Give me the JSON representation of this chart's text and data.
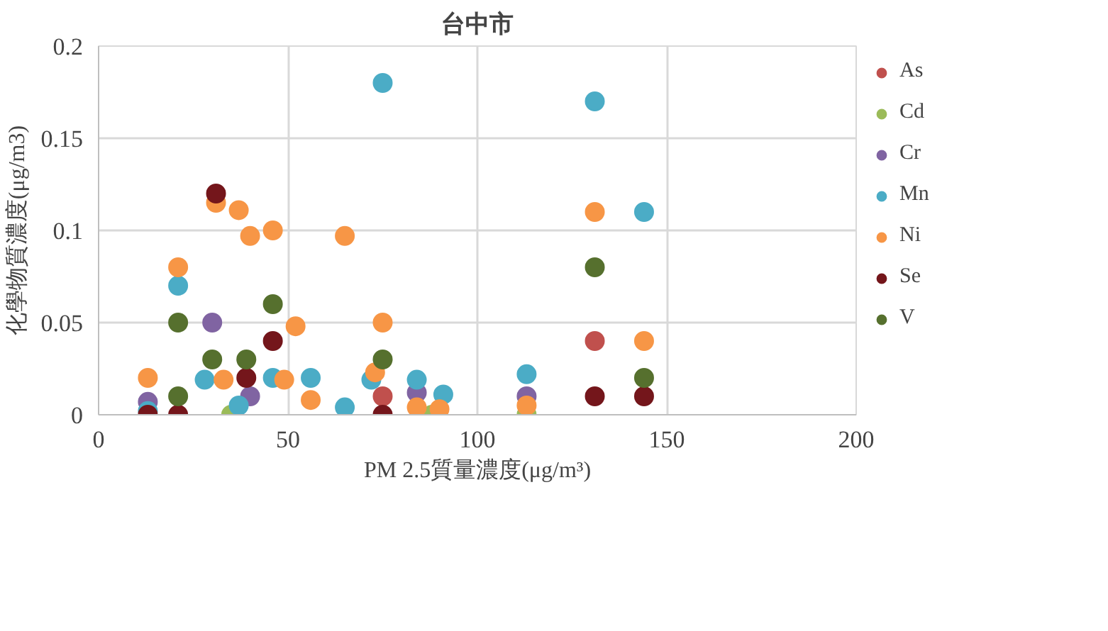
{
  "chart_data": {
    "type": "scatter",
    "title": "台中市",
    "xlabel": "PM 2.5質量濃度(μg/m³)",
    "ylabel": "化學物質濃度(μg/m3)",
    "xlim": [
      0,
      200
    ],
    "ylim": [
      0,
      0.2
    ],
    "xticks": [
      0,
      50,
      100,
      150,
      200
    ],
    "yticks": [
      0,
      0.05,
      0.1,
      0.15,
      0.2
    ],
    "grid": true,
    "legend": "right",
    "marker": "circle",
    "series": [
      {
        "name": "As",
        "color": "#c0504d",
        "x": [
          75,
          131
        ],
        "values": [
          0.01,
          0.04
        ]
      },
      {
        "name": "Cd",
        "color": "#9bbb59",
        "x": [
          35,
          88,
          113
        ],
        "values": [
          0.0,
          0.0,
          0.0
        ]
      },
      {
        "name": "Cr",
        "color": "#8064a2",
        "x": [
          13,
          30,
          40,
          84,
          113
        ],
        "values": [
          0.007,
          0.05,
          0.01,
          0.012,
          0.01
        ]
      },
      {
        "name": "Mn",
        "color": "#4bacc6",
        "x": [
          13,
          21,
          28,
          37,
          46,
          56,
          65,
          72,
          75,
          84,
          91,
          113,
          131,
          144
        ],
        "values": [
          0.002,
          0.07,
          0.019,
          0.005,
          0.02,
          0.02,
          0.004,
          0.019,
          0.18,
          0.019,
          0.011,
          0.022,
          0.17,
          0.11
        ]
      },
      {
        "name": "Ni",
        "color": "#f79646",
        "x": [
          13,
          21,
          33,
          31,
          37,
          40,
          46,
          49,
          52,
          56,
          65,
          73,
          75,
          84,
          90,
          113,
          131,
          144
        ],
        "values": [
          0.02,
          0.08,
          0.019,
          0.115,
          0.111,
          0.097,
          0.1,
          0.019,
          0.048,
          0.008,
          0.097,
          0.023,
          0.05,
          0.004,
          0.003,
          0.005,
          0.11,
          0.04
        ]
      },
      {
        "name": "Se",
        "color": "#74161b",
        "x": [
          13,
          21,
          31,
          39,
          46,
          75,
          131,
          144
        ],
        "values": [
          0.0,
          0.0,
          0.12,
          0.02,
          0.04,
          0.0,
          0.01,
          0.01
        ]
      },
      {
        "name": "V",
        "color": "#56702e",
        "x": [
          21,
          21,
          30,
          39,
          46,
          75,
          131,
          144
        ],
        "values": [
          0.05,
          0.01,
          0.03,
          0.03,
          0.06,
          0.03,
          0.08,
          0.02
        ]
      }
    ]
  }
}
